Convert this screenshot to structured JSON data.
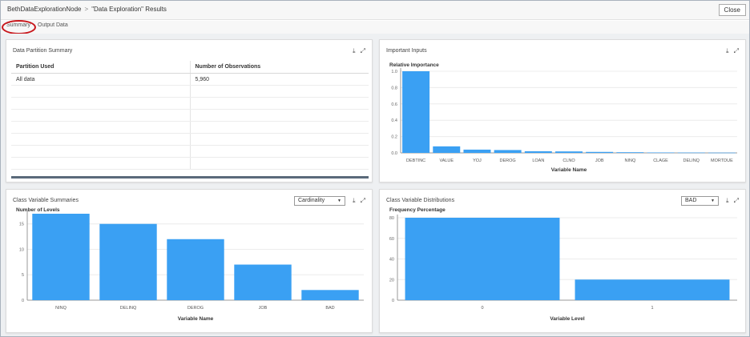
{
  "breadcrumb": {
    "node": "BethDataExplorationNode",
    "separator": ">",
    "title": "\"Data Exploration\" Results"
  },
  "close_label": "Close",
  "tabs": [
    {
      "label": "Summary"
    },
    {
      "label": "Output Data"
    }
  ],
  "colors": {
    "bar": "#3aa0f3",
    "annotation": "#c8171c"
  },
  "icons": {
    "download": "download-icon",
    "expand": "expand-icon"
  },
  "panels": {
    "data_partition": {
      "title": "Data Partition Summary",
      "columns": [
        "Partition Used",
        "Number of Observations"
      ],
      "rows": [
        [
          "All data",
          "5,960"
        ]
      ]
    },
    "important_inputs": {
      "title": "Important Inputs"
    },
    "class_summaries": {
      "title": "Class Variable Summaries",
      "dropdown": "Cardinality"
    },
    "class_distributions": {
      "title": "Class Variable Distributions",
      "dropdown": "BAD"
    }
  },
  "chart_data": [
    {
      "type": "bar",
      "ylabel": "Relative Importance",
      "xlabel": "Variable Name",
      "categories": [
        "DEBTINC",
        "VALUE",
        "YOJ",
        "DEROG",
        "LOAN",
        "CLNO",
        "JOB",
        "NINQ",
        "CLAGE",
        "DELINQ",
        "MORTDUE"
      ],
      "values": [
        1.0,
        0.08,
        0.04,
        0.035,
        0.02,
        0.018,
        0.012,
        0.008,
        0.005,
        0.004,
        0.003
      ],
      "yticks": [
        "0.0",
        "0.2",
        "0.4",
        "0.6",
        "0.8",
        "1.0"
      ],
      "ylim": [
        0,
        1.0
      ]
    },
    {
      "type": "bar",
      "ylabel": "Number of Levels",
      "xlabel": "Variable Name",
      "categories": [
        "NINQ",
        "DELINQ",
        "DEROG",
        "JOB",
        "BAD"
      ],
      "values": [
        17,
        15,
        12,
        7,
        2
      ],
      "yticks": [
        "0",
        "5",
        "10",
        "15"
      ],
      "ylim": [
        0,
        17
      ]
    },
    {
      "type": "bar",
      "ylabel": "Frequency Percentage",
      "xlabel": "Variable Level",
      "categories": [
        "0",
        "1"
      ],
      "values": [
        80,
        20
      ],
      "yticks": [
        "0",
        "20",
        "40",
        "60",
        "80"
      ],
      "ylim": [
        0,
        80
      ]
    }
  ]
}
